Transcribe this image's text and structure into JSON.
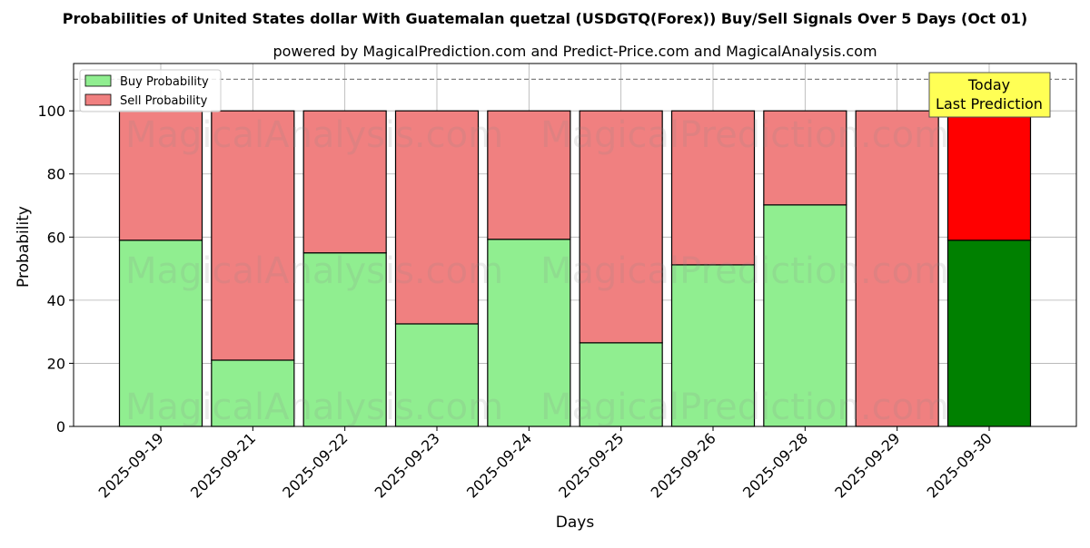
{
  "title": "Probabilities of United States dollar With Guatemalan quetzal (USDGTQ(Forex)) Buy/Sell Signals Over 5 Days (Oct 01)",
  "subtitle": "powered by MagicalPrediction.com and Predict-Price.com and MagicalAnalysis.com",
  "watermarks": [
    "MagicalAnalysis.com",
    "MagicalPrediction.com"
  ],
  "annotation": {
    "line1": "Today",
    "line2": "Last Prediction"
  },
  "colors": {
    "buy": "#90ee90",
    "sell": "#f08080",
    "buy_today": "#008000",
    "sell_today": "#ff0000",
    "annotation_bg": "#ffff55"
  },
  "chart_data": {
    "type": "bar",
    "stacked": true,
    "xlabel": "Days",
    "ylabel": "Probability",
    "categories": [
      "2025-09-19",
      "2025-09-21",
      "2025-09-22",
      "2025-09-23",
      "2025-09-24",
      "2025-09-25",
      "2025-09-26",
      "2025-09-28",
      "2025-09-29",
      "2025-09-30"
    ],
    "series": [
      {
        "name": "Buy Probability",
        "values": [
          59,
          21,
          55,
          32.5,
          59.3,
          26.5,
          51.2,
          70.2,
          0,
          59
        ]
      },
      {
        "name": "Sell Probability",
        "values": [
          41,
          79,
          45,
          67.5,
          40.7,
          73.5,
          48.8,
          29.8,
          100,
          41
        ]
      }
    ],
    "ylim": [
      0,
      115
    ],
    "yticks": [
      0,
      20,
      40,
      60,
      80,
      100
    ],
    "reference_line": 110,
    "grid": true,
    "legend_position": "upper left",
    "highlight_category": "2025-09-30"
  }
}
